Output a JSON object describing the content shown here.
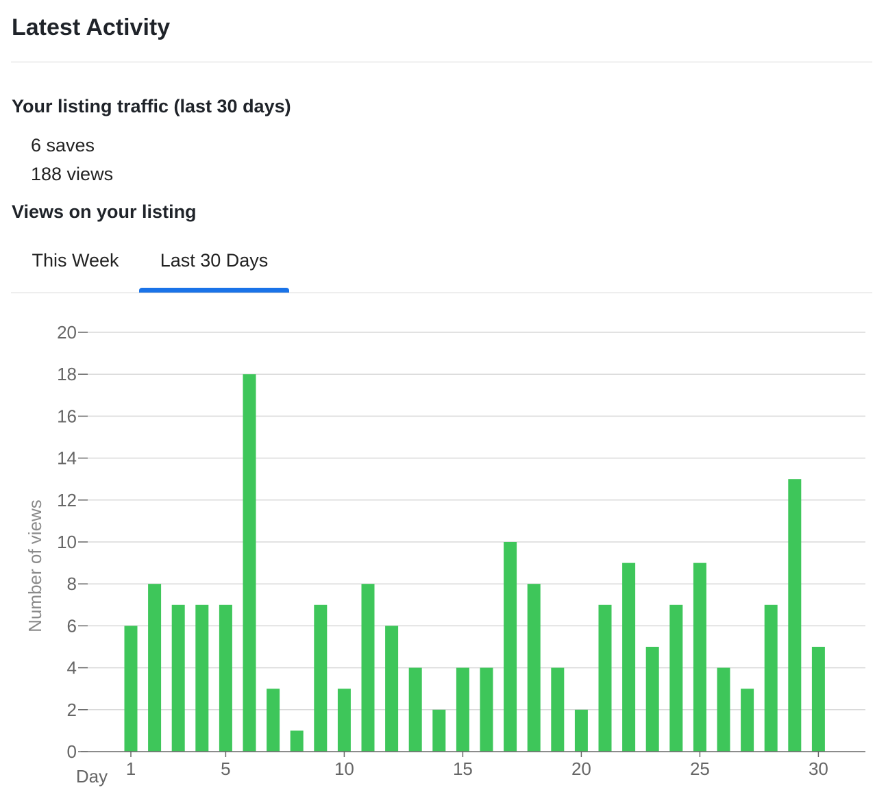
{
  "header": {
    "title": "Latest Activity"
  },
  "traffic": {
    "heading": "Your listing traffic (last 30 days)",
    "saves": "6 saves",
    "views": "188 views"
  },
  "views_section": {
    "heading": "Views on your listing",
    "tabs": [
      {
        "label": "This Week",
        "active": false
      },
      {
        "label": "Last 30 Days",
        "active": true
      }
    ]
  },
  "colors": {
    "bar": "#3ec65a",
    "tab_active": "#1a73e8",
    "axis_text": "#666666",
    "grid": "#d9d9d9"
  },
  "chart_data": {
    "type": "bar",
    "xlabel": "Day",
    "ylabel": "Number of views",
    "x": [
      1,
      2,
      3,
      4,
      5,
      6,
      7,
      8,
      9,
      10,
      11,
      12,
      13,
      14,
      15,
      16,
      17,
      18,
      19,
      20,
      21,
      22,
      23,
      24,
      25,
      26,
      27,
      28,
      29,
      30
    ],
    "values": [
      6,
      8,
      7,
      7,
      7,
      18,
      3,
      1,
      7,
      3,
      8,
      6,
      4,
      2,
      4,
      4,
      10,
      8,
      4,
      2,
      7,
      9,
      5,
      7,
      9,
      4,
      3,
      7,
      13,
      5
    ],
    "x_ticks": [
      1,
      5,
      10,
      15,
      20,
      25,
      30
    ],
    "y_ticks": [
      0,
      2,
      4,
      6,
      8,
      10,
      12,
      14,
      16,
      18,
      20
    ],
    "ylim": [
      0,
      20
    ],
    "grid": true
  }
}
